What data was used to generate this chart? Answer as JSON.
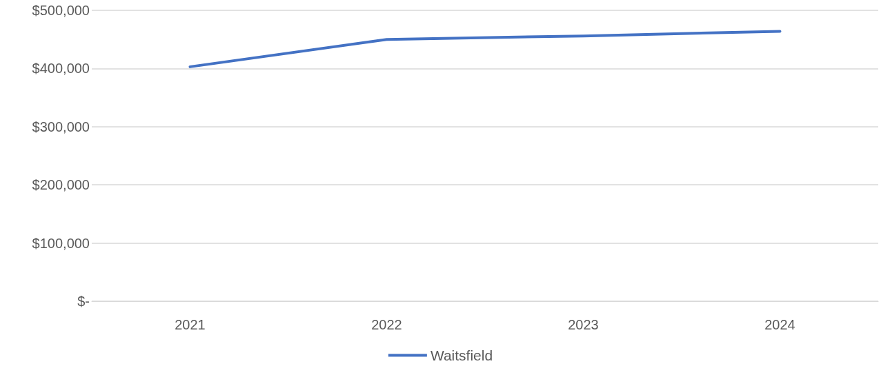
{
  "chart_data": {
    "type": "line",
    "categories": [
      "2021",
      "2022",
      "2023",
      "2024"
    ],
    "series": [
      {
        "name": "Waitsfield",
        "color": "#4472c4",
        "values": [
          403000,
          450000,
          456000,
          464000
        ]
      }
    ],
    "ylim": [
      0,
      500000
    ],
    "yticks": [
      {
        "value": 0,
        "label": "$-"
      },
      {
        "value": 100000,
        "label": "$100,000"
      },
      {
        "value": 200000,
        "label": "$200,000"
      },
      {
        "value": 300000,
        "label": "$300,000"
      },
      {
        "value": 400000,
        "label": "$400,000"
      },
      {
        "value": 500000,
        "label": "$500,000"
      }
    ],
    "grid": "y",
    "legend": "bottom",
    "marker": "none",
    "line_style": "solid"
  }
}
